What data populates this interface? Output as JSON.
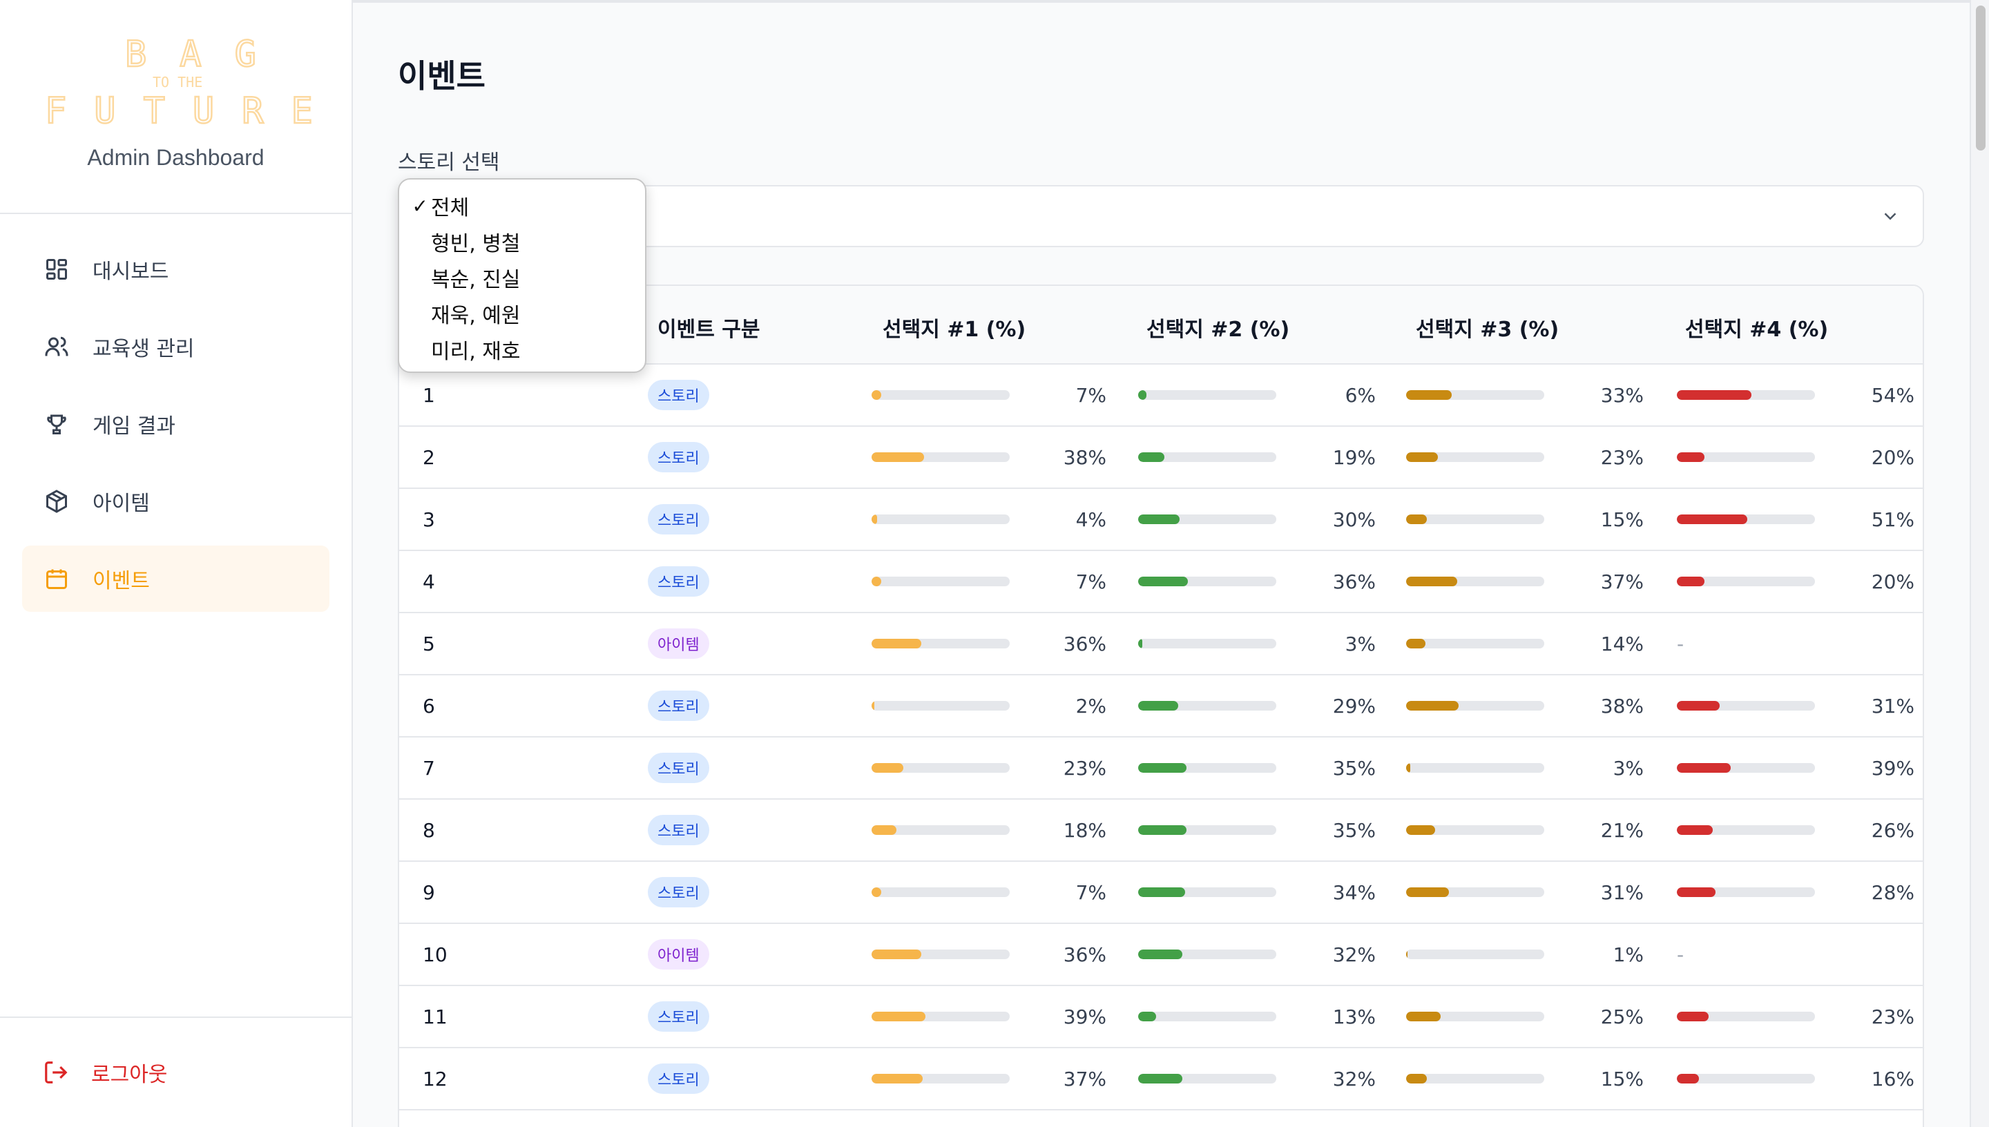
{
  "brand": {
    "logo_top": "BAG",
    "logo_mid": "TO THE",
    "logo_bottom": "FUTURE",
    "subtitle": "Admin Dashboard",
    "logo_color": "#fcd9a0"
  },
  "nav": [
    {
      "label": "대시보드",
      "icon": "dashboard-grid-icon",
      "active": false
    },
    {
      "label": "교육생 관리",
      "icon": "users-icon",
      "active": false
    },
    {
      "label": "게임 결과",
      "icon": "trophy-icon",
      "active": false
    },
    {
      "label": "아이템",
      "icon": "box-icon",
      "active": false
    },
    {
      "label": "이벤트",
      "icon": "calendar-icon",
      "active": true
    }
  ],
  "logout_label": "로그아웃",
  "page": {
    "title": "이벤트",
    "select_label": "스토리 선택"
  },
  "dropdown": {
    "selected": "전체",
    "options": [
      "전체",
      "형빈, 병철",
      "복순, 진실",
      "재욱, 예원",
      "미리, 재호"
    ]
  },
  "table": {
    "headers": [
      "이벤트 구분",
      "선택지 #1 (%)",
      "선택지 #2 (%)",
      "선택지 #3 (%)",
      "선택지 #4 (%)"
    ],
    "rows": [
      {
        "id": "1",
        "type": "스토리",
        "kind": "story",
        "c1": 7,
        "c2": 6,
        "c3": 33,
        "c4": 54
      },
      {
        "id": "2",
        "type": "스토리",
        "kind": "story",
        "c1": 38,
        "c2": 19,
        "c3": 23,
        "c4": 20
      },
      {
        "id": "3",
        "type": "스토리",
        "kind": "story",
        "c1": 4,
        "c2": 30,
        "c3": 15,
        "c4": 51
      },
      {
        "id": "4",
        "type": "스토리",
        "kind": "story",
        "c1": 7,
        "c2": 36,
        "c3": 37,
        "c4": 20
      },
      {
        "id": "5",
        "type": "아이템",
        "kind": "item",
        "c1": 36,
        "c2": 3,
        "c3": 14,
        "c4": null
      },
      {
        "id": "6",
        "type": "스토리",
        "kind": "story",
        "c1": 2,
        "c2": 29,
        "c3": 38,
        "c4": 31
      },
      {
        "id": "7",
        "type": "스토리",
        "kind": "story",
        "c1": 23,
        "c2": 35,
        "c3": 3,
        "c4": 39
      },
      {
        "id": "8",
        "type": "스토리",
        "kind": "story",
        "c1": 18,
        "c2": 35,
        "c3": 21,
        "c4": 26
      },
      {
        "id": "9",
        "type": "스토리",
        "kind": "story",
        "c1": 7,
        "c2": 34,
        "c3": 31,
        "c4": 28
      },
      {
        "id": "10",
        "type": "아이템",
        "kind": "item",
        "c1": 36,
        "c2": 32,
        "c3": 1,
        "c4": null
      },
      {
        "id": "11",
        "type": "스토리",
        "kind": "story",
        "c1": 39,
        "c2": 13,
        "c3": 25,
        "c4": 23
      },
      {
        "id": "12",
        "type": "스토리",
        "kind": "story",
        "c1": 37,
        "c2": 32,
        "c3": 15,
        "c4": 16
      }
    ],
    "empty_marker": "-"
  },
  "colors": {
    "c1": "#f6b54b",
    "c2": "#43a047",
    "c3": "#c88a12",
    "c4": "#d32f2f",
    "accent": "#f59e0b",
    "danger": "#dc2626"
  }
}
